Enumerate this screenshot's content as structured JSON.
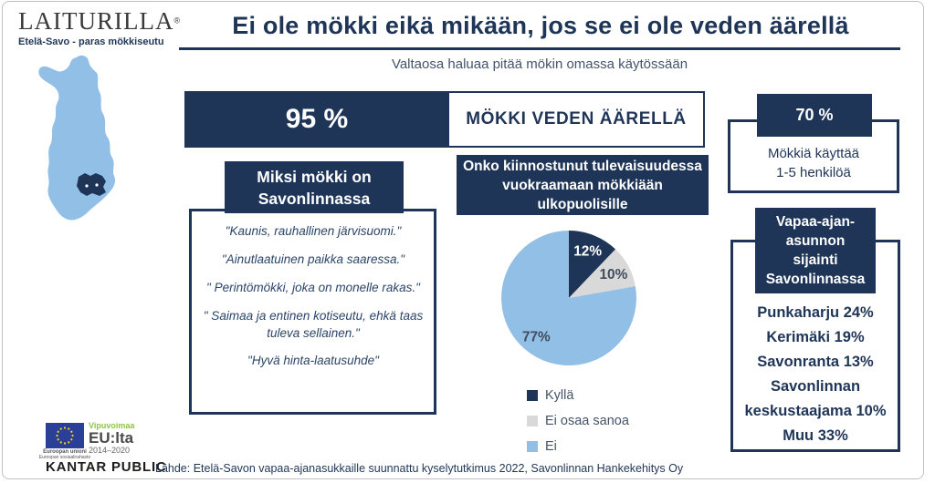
{
  "colors": {
    "navy": "#1f3557",
    "light_blue": "#92bfe6",
    "light_gray": "#d9d9d9",
    "slate_text": "#44546a",
    "quote_text": "#2b4568",
    "green": "#8dc63f",
    "eu_blue": "#2a3f97",
    "star_yellow": "#ffd617",
    "kantar_black": "#1d1d1b",
    "frame_gray": "#c0c0c0"
  },
  "brand": {
    "logo_text": "LAITURILLA",
    "logo_reg": "®",
    "tagline": "Etelä-Savo - paras mökkiseutu"
  },
  "header": {
    "title": "Ei ole mökki eikä mikään, jos se ei ole veden äärellä",
    "subtitle": "Valtaosa haluaa pitää mökin omassa käytössään"
  },
  "water_bar": {
    "percent": "95 %",
    "label": "MÖKKI VEDEN ÄÄRELLÄ"
  },
  "usage_box": {
    "percent": "70 %",
    "caption_lines": [
      "Mökkiä käyttää",
      "1-5 henkilöä"
    ]
  },
  "why_box": {
    "title_lines": [
      "Miksi mökki on",
      "Savonlinnassa"
    ],
    "quotes": [
      "\"Kaunis, rauhallinen järvisuomi.\"",
      "\"Ainutlaatuinen paikka saaressa.\"",
      "\" Perintömökki, joka on monelle rakas.\"",
      "\" Saimaa ja entinen kotiseutu, ehkä taas tuleva sellainen.\"",
      "\"Hyvä hinta-laatusuhde\""
    ]
  },
  "chart_data": {
    "type": "pie",
    "title": "Onko kiinnostunut tulevaisuudessa vuokraamaan mökkiään ulkopuolisille",
    "slices": [
      {
        "label": "Kyllä",
        "value": 12,
        "data_label": "12%",
        "color": "#1f3557",
        "label_color": "#ffffff"
      },
      {
        "label": "Ei osaa sanoa",
        "value": 10,
        "data_label": "10%",
        "color": "#d9d9d9",
        "label_color": "#3f4d5e"
      },
      {
        "label": "Ei",
        "value": 77,
        "data_label": "77%",
        "color": "#92bfe6",
        "label_color": "#3f4d5e"
      }
    ],
    "start_angle_deg": 0,
    "direction": "clockwise",
    "legend_position": "bottom-left"
  },
  "location_box": {
    "title_lines": [
      "Vapaa-ajan-",
      "asunnon",
      "sijainti",
      "Savonlinnassa"
    ],
    "items": [
      "Punkaharju 24%",
      "Kerimäki 19%",
      "Savonranta 13%",
      "Savonlinnan keskustaajama 10%",
      "Muu 33%"
    ]
  },
  "footer": {
    "eu": {
      "green_label": "Vipuvoimaa",
      "main_label": "EU:lta",
      "years": "2014–2020",
      "caption_line1": "Euroopan unioni",
      "caption_line2": "Euroopan sosiaalirahasto"
    },
    "kantar_label": "KANTAR PUBLIC",
    "source": "Lähde: Etelä-Savon vapaa-ajanasukkaille suunnattu kyselytutkimus 2022, Savonlinnan Hankekehitys Oy"
  }
}
